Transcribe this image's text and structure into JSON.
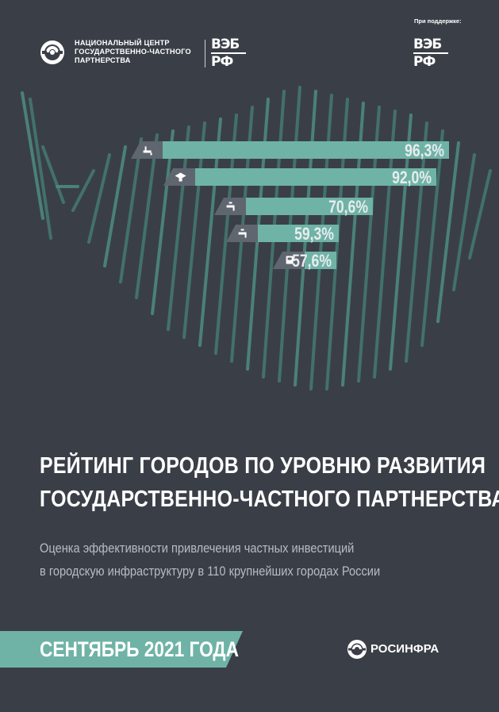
{
  "header": {
    "organization_lines": [
      "НАЦИОНАЛЬНЫЙ ЦЕНТР",
      "ГОСУДАРСТВЕННО-ЧАСТНОГО",
      "ПАРТНЕРСТВА"
    ],
    "partner_logo_text": [
      "ВЭБ",
      "РФ"
    ],
    "support_label": "При поддержке:",
    "support_logo_text": [
      "ВЭБ",
      "РФ"
    ]
  },
  "chart_data": {
    "type": "bar",
    "categories": [
      "water-supply-icon",
      "education-icon",
      "water-tap-icon",
      "water-tap-icon",
      "transport-icon"
    ],
    "values": [
      96.3,
      92.0,
      70.6,
      59.3,
      57.6
    ],
    "value_labels": [
      "96,3%",
      "92,0%",
      "70,6%",
      "59,3%",
      "57,6%"
    ],
    "ylim": [
      0,
      100
    ],
    "colors": {
      "bar": "#6fb3a6",
      "icon_bg": "#5f6670",
      "label": "#e8ecee"
    }
  },
  "title": {
    "line1": "РЕЙТИНГ ГОРОДОВ ПО УРОВНЮ РАЗВИТИЯ",
    "line2": "ГОСУДАРСТВЕННО-ЧАСТНОГО ПАРТНЕРСТВА"
  },
  "subtitle": {
    "line1": "Оценка эффективности привлечения частных инвестиций",
    "line2": "в городскую инфраструктуру в 110 крупнейших городах России"
  },
  "footer": {
    "date": "СЕНТЯБРЬ 2021 ГОДА",
    "brand": "РОСИНФРА"
  },
  "colors": {
    "background": "#3a3f47",
    "accent": "#6fb3a6",
    "text": "#ffffff",
    "muted_text": "#b7bcc1"
  }
}
